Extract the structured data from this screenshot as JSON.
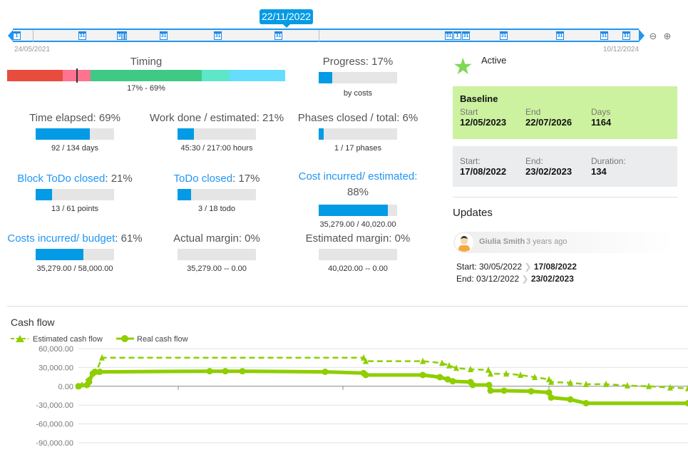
{
  "timeline": {
    "selected_date": "22/11/2022",
    "start_label": "24/05/2021",
    "end_label": "10/12/2024",
    "markers": [
      "1",
      "31",
      "31",
      "",
      "",
      "31",
      "31",
      "31",
      "31",
      "1",
      "31",
      "31",
      "31",
      "31",
      "31"
    ],
    "zoom_out_icon": "zoom-out-icon",
    "zoom_in_icon": "zoom-in-icon"
  },
  "timing": {
    "title": "Timing",
    "range": "17% - 69%",
    "segment_colors": [
      "#e74c3c",
      "#ff7391",
      "#3ec985",
      "#5ee6c9",
      "#66ddff"
    ]
  },
  "progress": {
    "title": "Progress: 17%",
    "percent": 17,
    "sub": "by costs"
  },
  "metrics": [
    {
      "link": "",
      "title": "Time elapsed: 69%",
      "percent": 69,
      "sub": "92 / 134 days"
    },
    {
      "link": "",
      "title": "Work done / estimated: 21%",
      "percent": 21,
      "sub": "45:30 / 217:00 hours"
    },
    {
      "link": "",
      "title": "Phases closed / total: 6%",
      "percent": 6,
      "sub": "1 / 17 phases"
    },
    {
      "link": "Block ToDo closed",
      "title": ": 21%",
      "percent": 21,
      "sub": "13 / 61 points"
    },
    {
      "link": "ToDo closed",
      "title": ": 17%",
      "percent": 17,
      "sub": "3 / 18 todo"
    },
    {
      "link": "Cost incurred/ estimated:",
      "title": "88%",
      "percent": 88,
      "sub": "35,279.00 / 40,020.00"
    },
    {
      "link": "Costs incurred/ budget",
      "title": ": 61%",
      "percent": 61,
      "sub": "35,279.00 / 58,000.00"
    },
    {
      "link": "",
      "title": "Actual margin: 0%",
      "percent": 0,
      "sub": "35,279.00 -- 0.00"
    },
    {
      "link": "",
      "title": "Estimated margin: 0%",
      "percent": 0,
      "sub": "40,020.00 -- 0.00"
    }
  ],
  "status": {
    "label": "Active",
    "icon": "star-icon",
    "color": "#7ed957"
  },
  "baseline": {
    "title": "Baseline",
    "start_label": "Start",
    "start": "12/05/2023",
    "end_label": "End",
    "end": "22/07/2026",
    "days_label": "Days",
    "days": "1164",
    "color": "#ccf29f"
  },
  "current": {
    "start_label": "Start:",
    "start": "17/08/2022",
    "end_label": "End:",
    "end": "23/02/2023",
    "duration_label": "Duration:",
    "duration": "134"
  },
  "updates": {
    "title": "Updates",
    "user": "Giulia Smith",
    "time": "3 years ago",
    "start_label": "Start: 30/05/2022",
    "start_new": "17/08/2022",
    "end_label": "End: 03/12/2022",
    "end_new": "23/02/2023"
  },
  "chart_data": {
    "type": "line",
    "title": "Cash flow",
    "legend": "top-left",
    "yticks": [
      "60,000.00",
      "30,000.00",
      "0.00",
      "-30,000.00",
      "-60,000.00",
      "-90,000.00"
    ],
    "ylim": [
      -90000,
      60000
    ],
    "grid": true,
    "color": "#8fce00",
    "series": [
      {
        "name": "Estimated cash flow",
        "style": "dashed",
        "marker": "triangle",
        "points": [
          [
            0,
            0
          ],
          [
            25,
            23000
          ],
          [
            33,
            45500
          ],
          [
            400,
            45500
          ],
          [
            403,
            40000
          ],
          [
            483,
            40000
          ],
          [
            510,
            37000
          ],
          [
            520,
            33000
          ],
          [
            530,
            29000
          ],
          [
            550,
            27000
          ],
          [
            575,
            26000
          ],
          [
            578,
            20000
          ],
          [
            600,
            20000
          ],
          [
            620,
            18000
          ],
          [
            640,
            14400
          ],
          [
            660,
            11000
          ],
          [
            663,
            6700
          ],
          [
            690,
            5600
          ],
          [
            712,
            3300
          ],
          [
            740,
            3300
          ],
          [
            770,
            1100
          ],
          [
            800,
            0
          ],
          [
            830,
            -2200
          ],
          [
            855,
            -3300
          ]
        ]
      },
      {
        "name": "Real cash flow",
        "style": "solid",
        "marker": "circle",
        "points": [
          [
            0,
            0
          ],
          [
            12,
            2000
          ],
          [
            15,
            7000
          ],
          [
            20,
            20000
          ],
          [
            23,
            23000
          ],
          [
            30,
            23000
          ],
          [
            184,
            24000
          ],
          [
            206,
            24000
          ],
          [
            230,
            24000
          ],
          [
            346,
            23000
          ],
          [
            400,
            21000
          ],
          [
            403,
            18000
          ],
          [
            483,
            18000
          ],
          [
            507,
            14500
          ],
          [
            518,
            11000
          ],
          [
            525,
            8000
          ],
          [
            550,
            6700
          ],
          [
            553,
            2000
          ],
          [
            576,
            2000
          ],
          [
            578,
            -7000
          ],
          [
            597,
            -7000
          ],
          [
            635,
            -8000
          ],
          [
            660,
            -10000
          ],
          [
            663,
            -18000
          ],
          [
            690,
            -21000
          ],
          [
            712,
            -27000
          ],
          [
            855,
            -27000
          ]
        ]
      }
    ]
  }
}
